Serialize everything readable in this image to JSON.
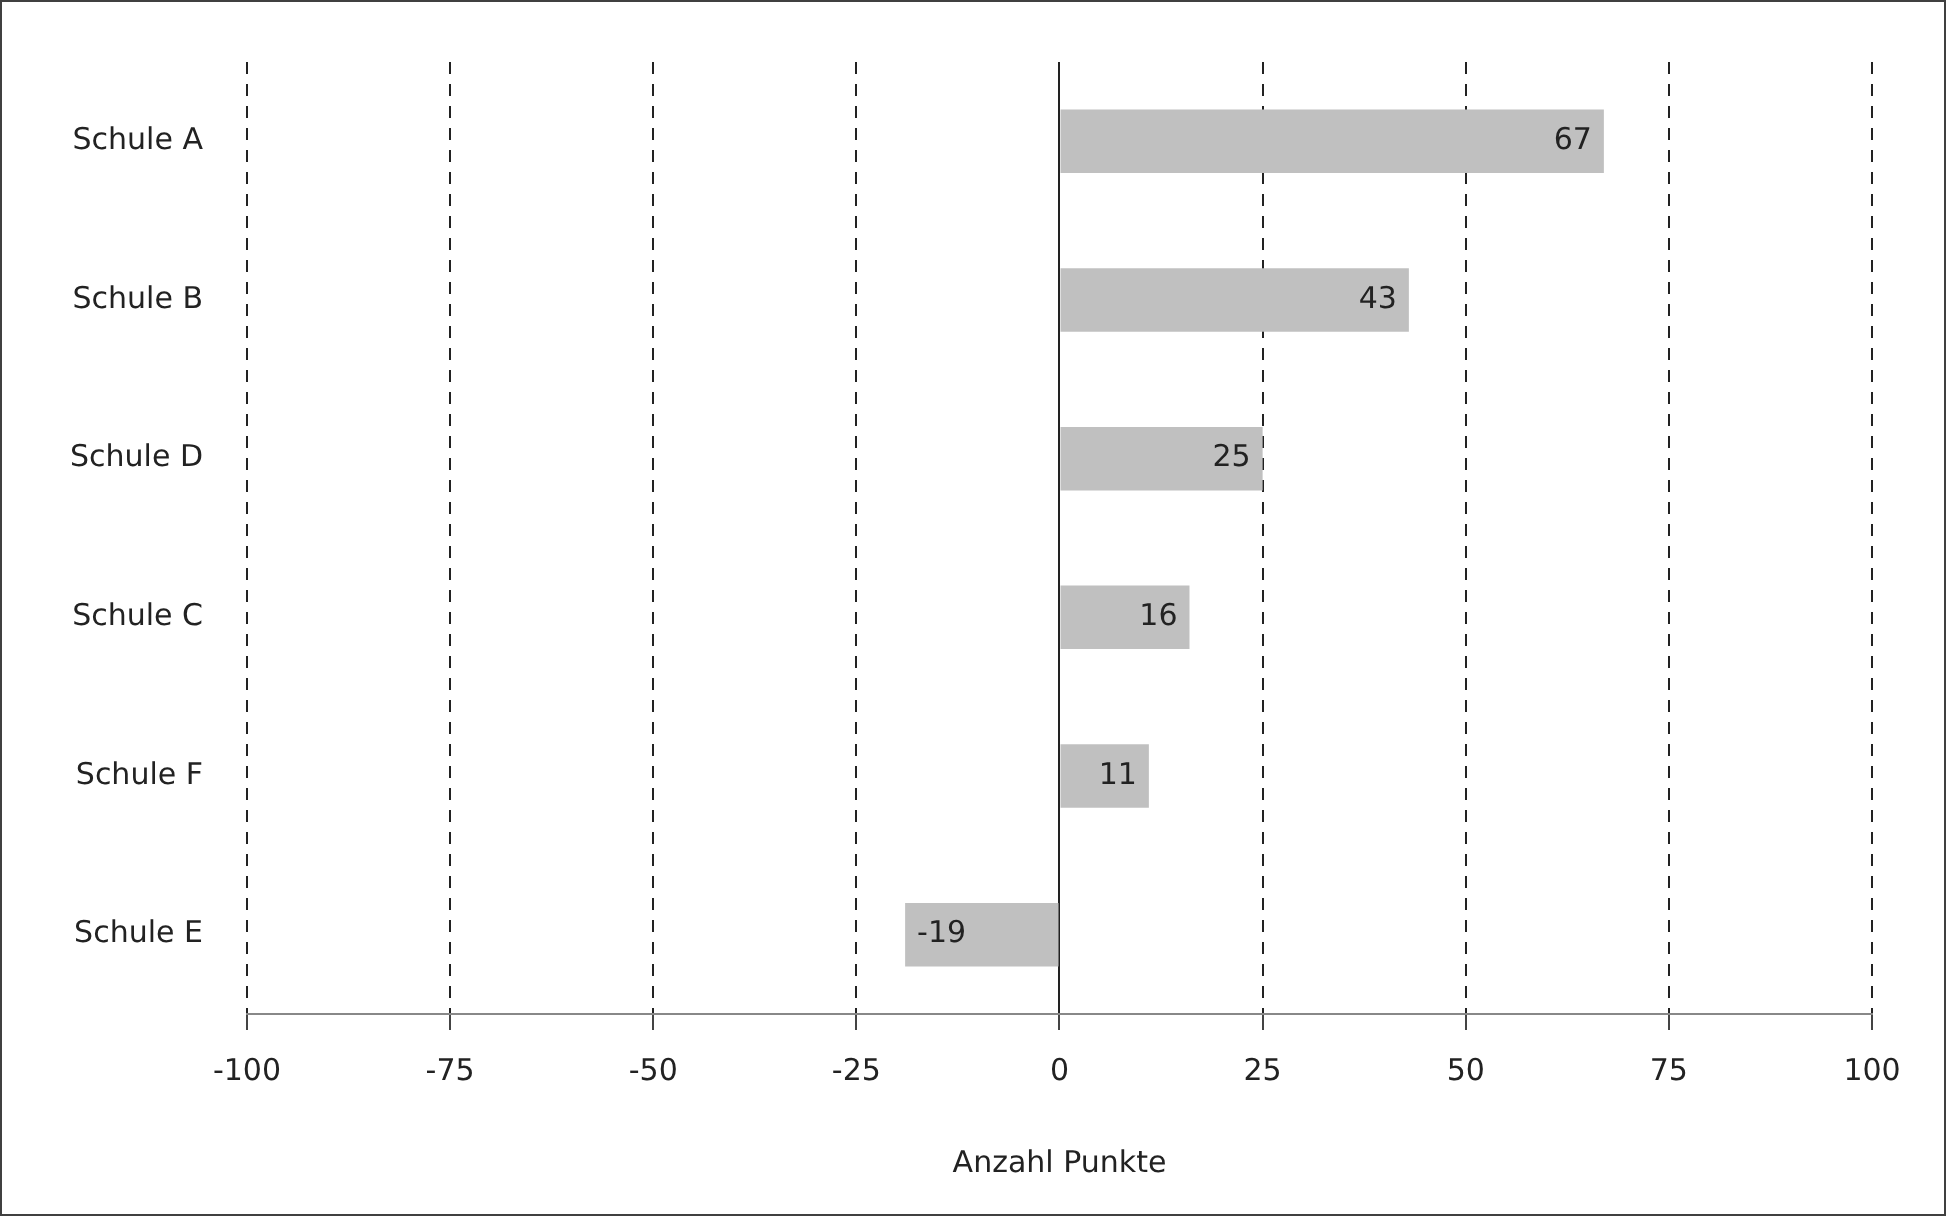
{
  "chart_data": {
    "type": "bar",
    "orientation": "horizontal",
    "categories": [
      "Schule A",
      "Schule B",
      "Schule D",
      "Schule C",
      "Schule F",
      "Schule E"
    ],
    "values": [
      67,
      43,
      25,
      16,
      11,
      -19
    ],
    "color": "#c0c0c0",
    "xlim": [
      -100,
      100
    ],
    "xticks": [
      -100,
      -75,
      -50,
      -25,
      0,
      25,
      50,
      75,
      100
    ],
    "xlabel": "Anzahl Punkte",
    "grid": "x",
    "legend": false,
    "data_labels": true
  }
}
